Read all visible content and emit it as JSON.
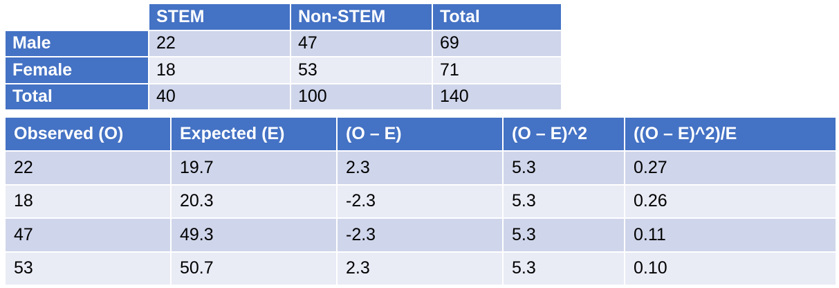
{
  "contingency_table": {
    "headers": [
      "",
      "STEM",
      "Non-STEM",
      "Total"
    ],
    "rows": [
      {
        "label": "Male",
        "values": [
          "22",
          "47",
          "69"
        ]
      },
      {
        "label": "Female",
        "values": [
          "18",
          "53",
          "71"
        ]
      },
      {
        "label": "Total",
        "values": [
          "40",
          "100",
          "140"
        ]
      }
    ]
  },
  "chi_square_table": {
    "headers": [
      "Observed (O)",
      "Expected (E)",
      "(O – E)",
      "(O – E)^2",
      "((O – E)^2)/E"
    ],
    "rows": [
      [
        "22",
        "19.7",
        "2.3",
        "5.3",
        "0.27"
      ],
      [
        "18",
        "20.3",
        "-2.3",
        "5.3",
        "0.26"
      ],
      [
        "47",
        "49.3",
        "-2.3",
        "5.3",
        "0.11"
      ],
      [
        "53",
        "50.7",
        "2.3",
        "5.3",
        "0.10"
      ]
    ]
  },
  "colors": {
    "header_blue": "#4472c4",
    "row_dark": "#cfd5ea",
    "row_light": "#e9ebf5"
  }
}
